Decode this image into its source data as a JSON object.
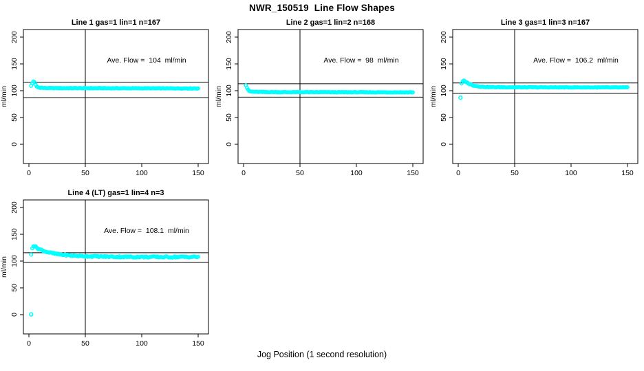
{
  "page": {
    "title": "NWR_150519  Line Flow Shapes",
    "x_axis_title": "Jog Position (1 second resolution)",
    "background_color": "#ffffff"
  },
  "style": {
    "point_color": "#00ffff",
    "axis_color": "#000000",
    "text_color": "#000000"
  },
  "axes": {
    "xticks": [
      0,
      50,
      100,
      150
    ],
    "yticks": [
      0,
      50,
      100,
      150,
      200
    ],
    "ylabel": "ml/min",
    "xlim": [
      0,
      157
    ],
    "ylim": [
      0,
      205
    ]
  },
  "chart_data": [
    {
      "type": "scatter",
      "marker": "open-circle",
      "title": "Line 1 gas=1 lin=1 n=167",
      "annotation": "Ave. Flow =  104  ml/min",
      "ave_flow": 104,
      "ref_lines_y": [
        115.5,
        87
      ],
      "vline_x": 50,
      "x_start": 2,
      "x_end": 150,
      "x_step": 1,
      "profile_points": [
        [
          2,
          109
        ],
        [
          3,
          114
        ],
        [
          4,
          117.5
        ],
        [
          5,
          115.5
        ],
        [
          6,
          111
        ],
        [
          7,
          108
        ],
        [
          8,
          106.5
        ],
        [
          10,
          105.5
        ],
        [
          14,
          105
        ],
        [
          30,
          104.8
        ],
        [
          150,
          104.3
        ]
      ],
      "outliers": [],
      "noise": 0.5
    },
    {
      "type": "scatter",
      "marker": "open-circle",
      "title": "Line 2 gas=1 lin=2 n=168",
      "annotation": "Ave. Flow =  98  ml/min",
      "ave_flow": 98,
      "ref_lines_y": [
        113,
        88
      ],
      "vline_x": 50,
      "x_start": 2,
      "x_end": 150,
      "x_step": 1,
      "profile_points": [
        [
          2,
          110
        ],
        [
          3,
          105.5
        ],
        [
          4,
          101.5
        ],
        [
          5,
          99.5
        ],
        [
          6,
          98.5
        ],
        [
          8,
          98
        ],
        [
          12,
          97.6
        ],
        [
          30,
          97.3
        ],
        [
          150,
          97
        ]
      ],
      "outliers": [],
      "noise": 0.5
    },
    {
      "type": "scatter",
      "marker": "open-circle",
      "title": "Line 3 gas=1 lin=3 n=167",
      "annotation": "Ave. Flow =  106.2  ml/min",
      "ave_flow": 106.2,
      "ref_lines_y": [
        114.5,
        95
      ],
      "vline_x": 50,
      "x_start": 3,
      "x_end": 150,
      "x_step": 1,
      "profile_points": [
        [
          3,
          113
        ],
        [
          4,
          117.5
        ],
        [
          5,
          118.5
        ],
        [
          6,
          117.5
        ],
        [
          8,
          115
        ],
        [
          10,
          112.5
        ],
        [
          13,
          110
        ],
        [
          17,
          108.3
        ],
        [
          22,
          107.2
        ],
        [
          30,
          106.6
        ],
        [
          60,
          106.3
        ],
        [
          150,
          106
        ]
      ],
      "outliers": [
        [
          2,
          87
        ]
      ],
      "noise": 0.55
    },
    {
      "type": "scatter",
      "marker": "open-circle",
      "title": "Line 4 (LT) gas=1 lin=4 n=3",
      "annotation": "Ave. Flow =  108.1  ml/min",
      "ave_flow": 108.1,
      "ref_lines_y": [
        115.5,
        97.5
      ],
      "vline_x": 50,
      "x_start": 2,
      "x_end": 150,
      "x_step": 1,
      "profile_points": [
        [
          2,
          112
        ],
        [
          3,
          125
        ],
        [
          4,
          128.5
        ],
        [
          5,
          128
        ],
        [
          6,
          126.5
        ],
        [
          8,
          123.5
        ],
        [
          10,
          121.5
        ],
        [
          13,
          119
        ],
        [
          16,
          117
        ],
        [
          20,
          115
        ],
        [
          25,
          113
        ],
        [
          31,
          111.5
        ],
        [
          38,
          110.3
        ],
        [
          46,
          109.4
        ],
        [
          55,
          108.8
        ],
        [
          70,
          108.2
        ],
        [
          90,
          107.8
        ],
        [
          120,
          107.6
        ],
        [
          150,
          107.8
        ]
      ],
      "outliers": [
        [
          2,
          0.5
        ]
      ],
      "noise": 1.2
    }
  ]
}
